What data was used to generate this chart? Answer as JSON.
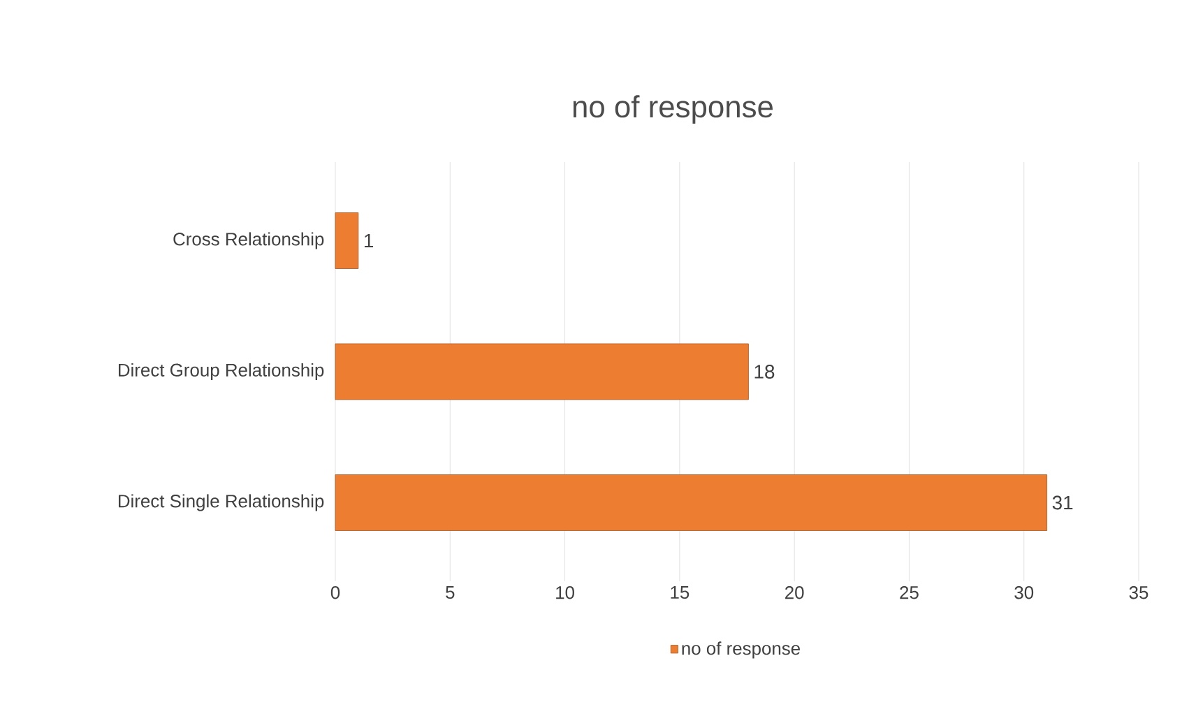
{
  "chart_data": {
    "type": "bar",
    "orientation": "horizontal",
    "title": "no of response",
    "categories": [
      "Cross Relationship",
      "Direct Group Relationship",
      "Direct Single Relationship"
    ],
    "series": [
      {
        "name": "no of response",
        "color": "#ed7d31",
        "values": [
          1,
          18,
          31
        ]
      }
    ],
    "xlim": [
      0,
      35
    ],
    "xticks": [
      0,
      5,
      10,
      15,
      20,
      25,
      30,
      35
    ],
    "grid": "x",
    "legend": "bottom",
    "data_labels": true
  }
}
